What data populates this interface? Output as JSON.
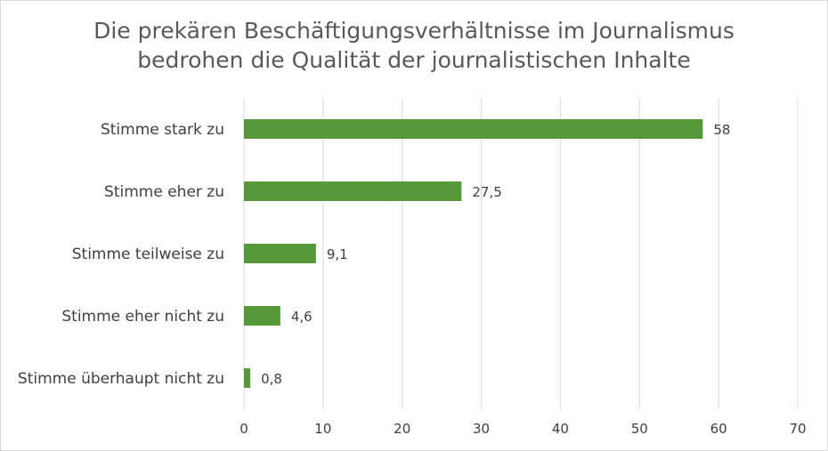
{
  "chart_data": {
    "type": "bar",
    "orientation": "horizontal",
    "title_lines": [
      "Die prekären Beschäftigungsverhältnisse im Journalismus",
      "bedrohen die Qualität der journalistischen Inhalte"
    ],
    "categories": [
      "Stimme stark zu",
      "Stimme eher zu",
      "Stimme teilweise zu",
      "Stimme eher nicht zu",
      "Stimme überhaupt nicht zu"
    ],
    "values": [
      58,
      27.5,
      9.1,
      4.6,
      0.8
    ],
    "data_labels": [
      "58",
      "27,5",
      "9,1",
      "4,6",
      "0,8"
    ],
    "xlim": [
      0,
      70
    ],
    "x_ticks": [
      0,
      10,
      20,
      30,
      40,
      50,
      60,
      70
    ],
    "x_tick_labels": [
      "0",
      "10",
      "20",
      "30",
      "40",
      "50",
      "60",
      "70"
    ],
    "grid": true,
    "legend": "none",
    "colors": {
      "bar": "#56993a",
      "grid": "#d9d9d9",
      "text": "#404040",
      "title": "#595959"
    }
  }
}
